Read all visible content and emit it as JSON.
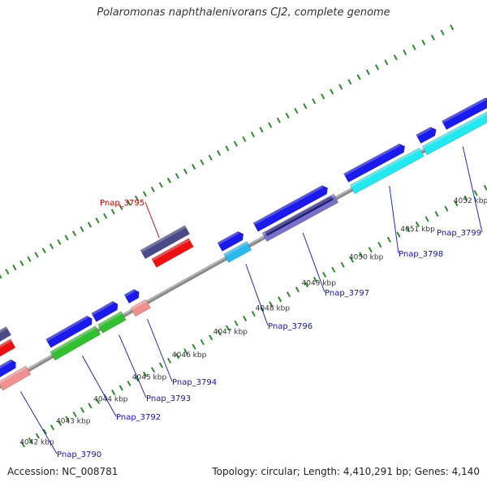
{
  "title": "Polaromonas naphthalenivorans CJ2, complete genome",
  "footer": {
    "accession": "Accession: NC_008781",
    "summary": "Topology: circular; Length: 4,410,291 bp; Genes: 4,140"
  },
  "colors": {
    "backbone": "#8c8c8c",
    "tick": "#2e8b2e",
    "label_blue": "#1010cc",
    "label_red": "#cc0000",
    "navy": "#4a4a8a",
    "blue": "#1a1aee",
    "cyan": "#22e8f0",
    "sky": "#2ab8ee",
    "lavender": "#7a70cc",
    "green": "#30c030",
    "pink": "#f09090",
    "red": "#ee1010",
    "steel": "#3a78b8"
  },
  "scale_labels": [
    {
      "text": "4042 kbp",
      "kbp": 4042
    },
    {
      "text": "4043 kbp",
      "kbp": 4043
    },
    {
      "text": "4044 kbp",
      "kbp": 4044
    },
    {
      "text": "4045 kbp",
      "kbp": 4045
    },
    {
      "text": "4046 kbp",
      "kbp": 4046
    },
    {
      "text": "4047 kbp",
      "kbp": 4047
    },
    {
      "text": "4048 kbp",
      "kbp": 4048
    },
    {
      "text": "4049 kbp",
      "kbp": 4049
    },
    {
      "text": "4050 kbp",
      "kbp": 4050
    },
    {
      "text": "4051 kbp",
      "kbp": 4051
    },
    {
      "text": "4052 kbp",
      "kbp": 4052
    }
  ],
  "gene_labels": [
    {
      "text": "Pnap_3790",
      "color": "blue"
    },
    {
      "text": "Pnap_3792",
      "color": "blue"
    },
    {
      "text": "Pnap_3793",
      "color": "blue"
    },
    {
      "text": "Pnap_3794",
      "color": "blue"
    },
    {
      "text": "Pnap_3795",
      "color": "red"
    },
    {
      "text": "Pnap_3796",
      "color": "blue"
    },
    {
      "text": "Pnap_3797",
      "color": "blue"
    },
    {
      "text": "Pnap_3798",
      "color": "blue"
    },
    {
      "text": "Pnap_3799",
      "color": "blue"
    }
  ]
}
